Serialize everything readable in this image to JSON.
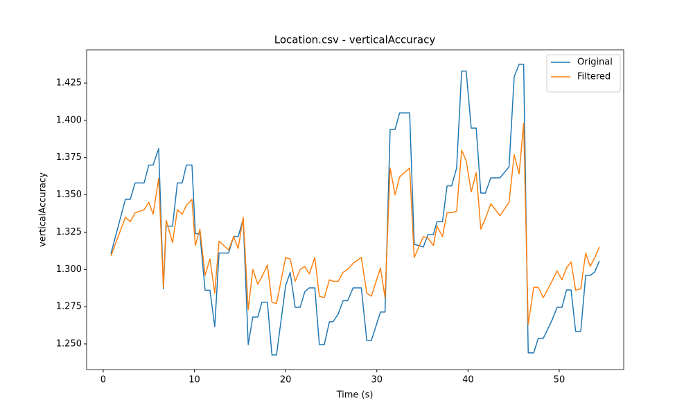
{
  "chart_data": {
    "type": "line",
    "title": "Location.csv - verticalAccuracy",
    "x_label": "Time (s)",
    "y_label": "verticalAccuracy",
    "x": [
      0.84,
      2.43,
      2.96,
      3.5,
      4.48,
      5.0,
      5.47,
      6.08,
      6.6,
      6.9,
      7.6,
      8.13,
      8.66,
      9.12,
      9.73,
      10.1,
      10.6,
      11.17,
      11.7,
      12.23,
      12.7,
      13.75,
      14.3,
      14.8,
      15.35,
      15.9,
      16.4,
      16.95,
      17.4,
      18.0,
      18.5,
      19.0,
      20.0,
      20.5,
      21.05,
      21.6,
      22.1,
      22.6,
      23.2,
      23.7,
      24.24,
      24.8,
      25.2,
      25.76,
      26.3,
      26.8,
      27.4,
      28.3,
      28.9,
      29.4,
      30.4,
      30.9,
      31.46,
      32.0,
      32.5,
      33.6,
      34.1,
      35.1,
      35.6,
      36.2,
      36.6,
      37.2,
      37.7,
      38.2,
      38.75,
      39.3,
      39.8,
      40.35,
      40.9,
      41.4,
      41.9,
      42.5,
      43.5,
      44.5,
      45.06,
      45.6,
      46.1,
      46.6,
      47.2,
      47.7,
      48.25,
      49.2,
      49.77,
      50.3,
      50.8,
      51.3,
      51.8,
      52.36,
      52.9,
      53.4,
      53.9,
      54.4
    ],
    "series": [
      {
        "name": "Original",
        "color": "#1f77b4",
        "values": [
          1.3104,
          1.347,
          1.347,
          1.358,
          1.358,
          1.37,
          1.37,
          1.381,
          1.287,
          1.329,
          1.329,
          1.358,
          1.358,
          1.37,
          1.37,
          1.324,
          1.324,
          1.286,
          1.286,
          1.2616,
          1.311,
          1.311,
          1.322,
          1.322,
          1.334,
          1.2495,
          1.268,
          1.268,
          1.278,
          1.278,
          1.2426,
          1.2426,
          1.289,
          1.298,
          1.2746,
          1.2746,
          1.285,
          1.2876,
          1.2876,
          1.2495,
          1.2495,
          1.2649,
          1.2649,
          1.27,
          1.279,
          1.279,
          1.2876,
          1.2876,
          1.2523,
          1.2523,
          1.2714,
          1.2714,
          1.3939,
          1.3939,
          1.405,
          1.405,
          1.3169,
          1.315,
          1.3233,
          1.3233,
          1.332,
          1.332,
          1.356,
          1.356,
          1.368,
          1.433,
          1.433,
          1.3948,
          1.3948,
          1.3512,
          1.3512,
          1.3614,
          1.3614,
          1.3688,
          1.4292,
          1.4376,
          1.4376,
          1.244,
          1.244,
          1.2537,
          1.2537,
          1.2658,
          1.2746,
          1.2746,
          1.2862,
          1.2862,
          1.2584,
          1.2584,
          1.296,
          1.296,
          1.2983,
          1.3057
        ]
      },
      {
        "name": "Filtered",
        "color": "#ff7f0e",
        "values": [
          1.309,
          1.335,
          1.332,
          1.338,
          1.34,
          1.345,
          1.337,
          1.361,
          1.288,
          1.333,
          1.318,
          1.34,
          1.337,
          1.343,
          1.347,
          1.316,
          1.327,
          1.296,
          1.307,
          1.284,
          1.319,
          1.313,
          1.322,
          1.314,
          1.335,
          1.273,
          1.3,
          1.29,
          1.295,
          1.303,
          1.278,
          1.277,
          1.308,
          1.307,
          1.292,
          1.3,
          1.302,
          1.297,
          1.308,
          1.282,
          1.281,
          1.293,
          1.292,
          1.292,
          1.298,
          1.3,
          1.304,
          1.308,
          1.284,
          1.282,
          1.301,
          1.281,
          1.368,
          1.35,
          1.362,
          1.368,
          1.308,
          1.322,
          1.321,
          1.316,
          1.329,
          1.322,
          1.338,
          1.338,
          1.339,
          1.38,
          1.373,
          1.352,
          1.365,
          1.327,
          1.334,
          1.344,
          1.336,
          1.345,
          1.377,
          1.364,
          1.398,
          1.263,
          1.288,
          1.288,
          1.281,
          1.292,
          1.299,
          1.293,
          1.301,
          1.305,
          1.286,
          1.287,
          1.311,
          1.302,
          1.308,
          1.315
        ]
      }
    ],
    "xlim": [
      -1.82,
      57.07
    ],
    "ylim": [
      1.2328,
      1.4473
    ],
    "xticks": [
      0,
      10,
      20,
      30,
      40,
      50
    ],
    "yticks": [
      {
        "value": 1.25,
        "label": "1.250"
      },
      1.275,
      {
        "value": 1.3,
        "label": "1.300"
      },
      1.325,
      {
        "value": 1.35,
        "label": "1.350"
      },
      1.375,
      {
        "value": 1.4,
        "label": "1.400"
      },
      1.425
    ],
    "legend": "upper right",
    "grid": false
  }
}
